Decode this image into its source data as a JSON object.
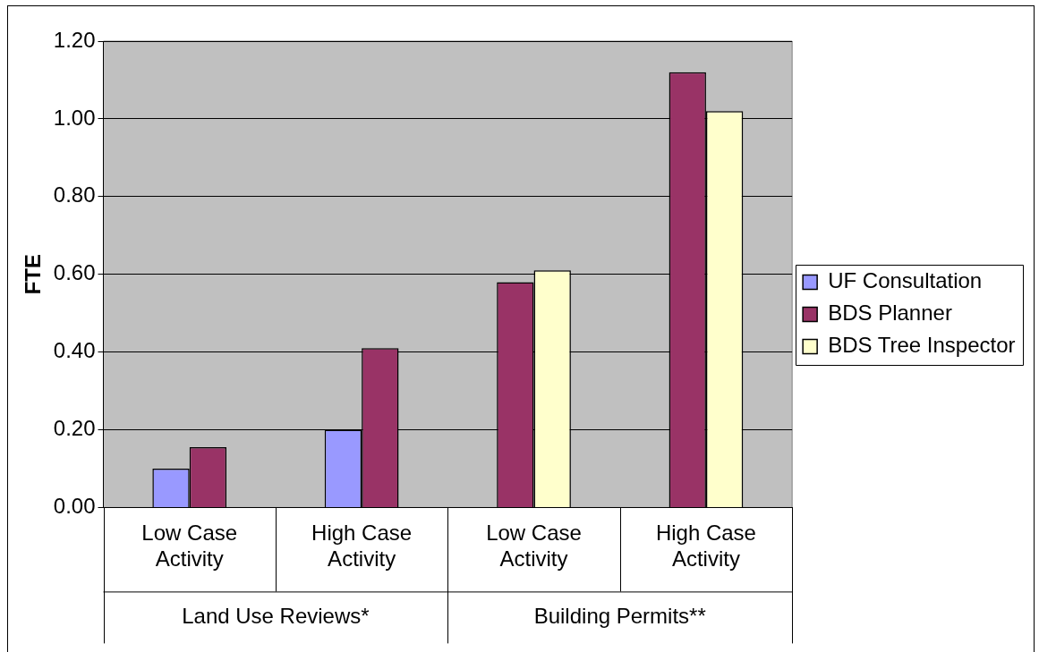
{
  "chart_data": {
    "type": "bar",
    "ylabel": "FTE",
    "categories": [
      "Low Case Activity",
      "High Case Activity",
      "Low Case Activity",
      "High Case Activity"
    ],
    "series": [
      {
        "name": "UF Consultation",
        "color": "#9999ff",
        "values": [
          0.1,
          0.2,
          null,
          null
        ]
      },
      {
        "name": "BDS Planner",
        "color": "#993366",
        "values": [
          0.155,
          0.41,
          0.58,
          1.12
        ]
      },
      {
        "name": "BDS Tree Inspector",
        "color": "#ffffcc",
        "values": [
          null,
          null,
          0.61,
          1.02
        ]
      }
    ],
    "ylim": [
      0,
      1.2
    ],
    "yticks": [
      {
        "value": 0,
        "label": "0.00"
      },
      {
        "value": 0.2,
        "label": "0.20"
      },
      {
        "value": 0.4,
        "label": "0.40"
      },
      {
        "value": 0.6,
        "label": "0.60"
      },
      {
        "value": 0.8,
        "label": "0.80"
      },
      {
        "value": 1.0,
        "label": "1.00"
      },
      {
        "value": 1.2,
        "label": "1.20"
      }
    ],
    "annotations": [
      "Land Use Reviews*",
      "Building Permits**"
    ],
    "grid": "y",
    "legend": "right"
  }
}
